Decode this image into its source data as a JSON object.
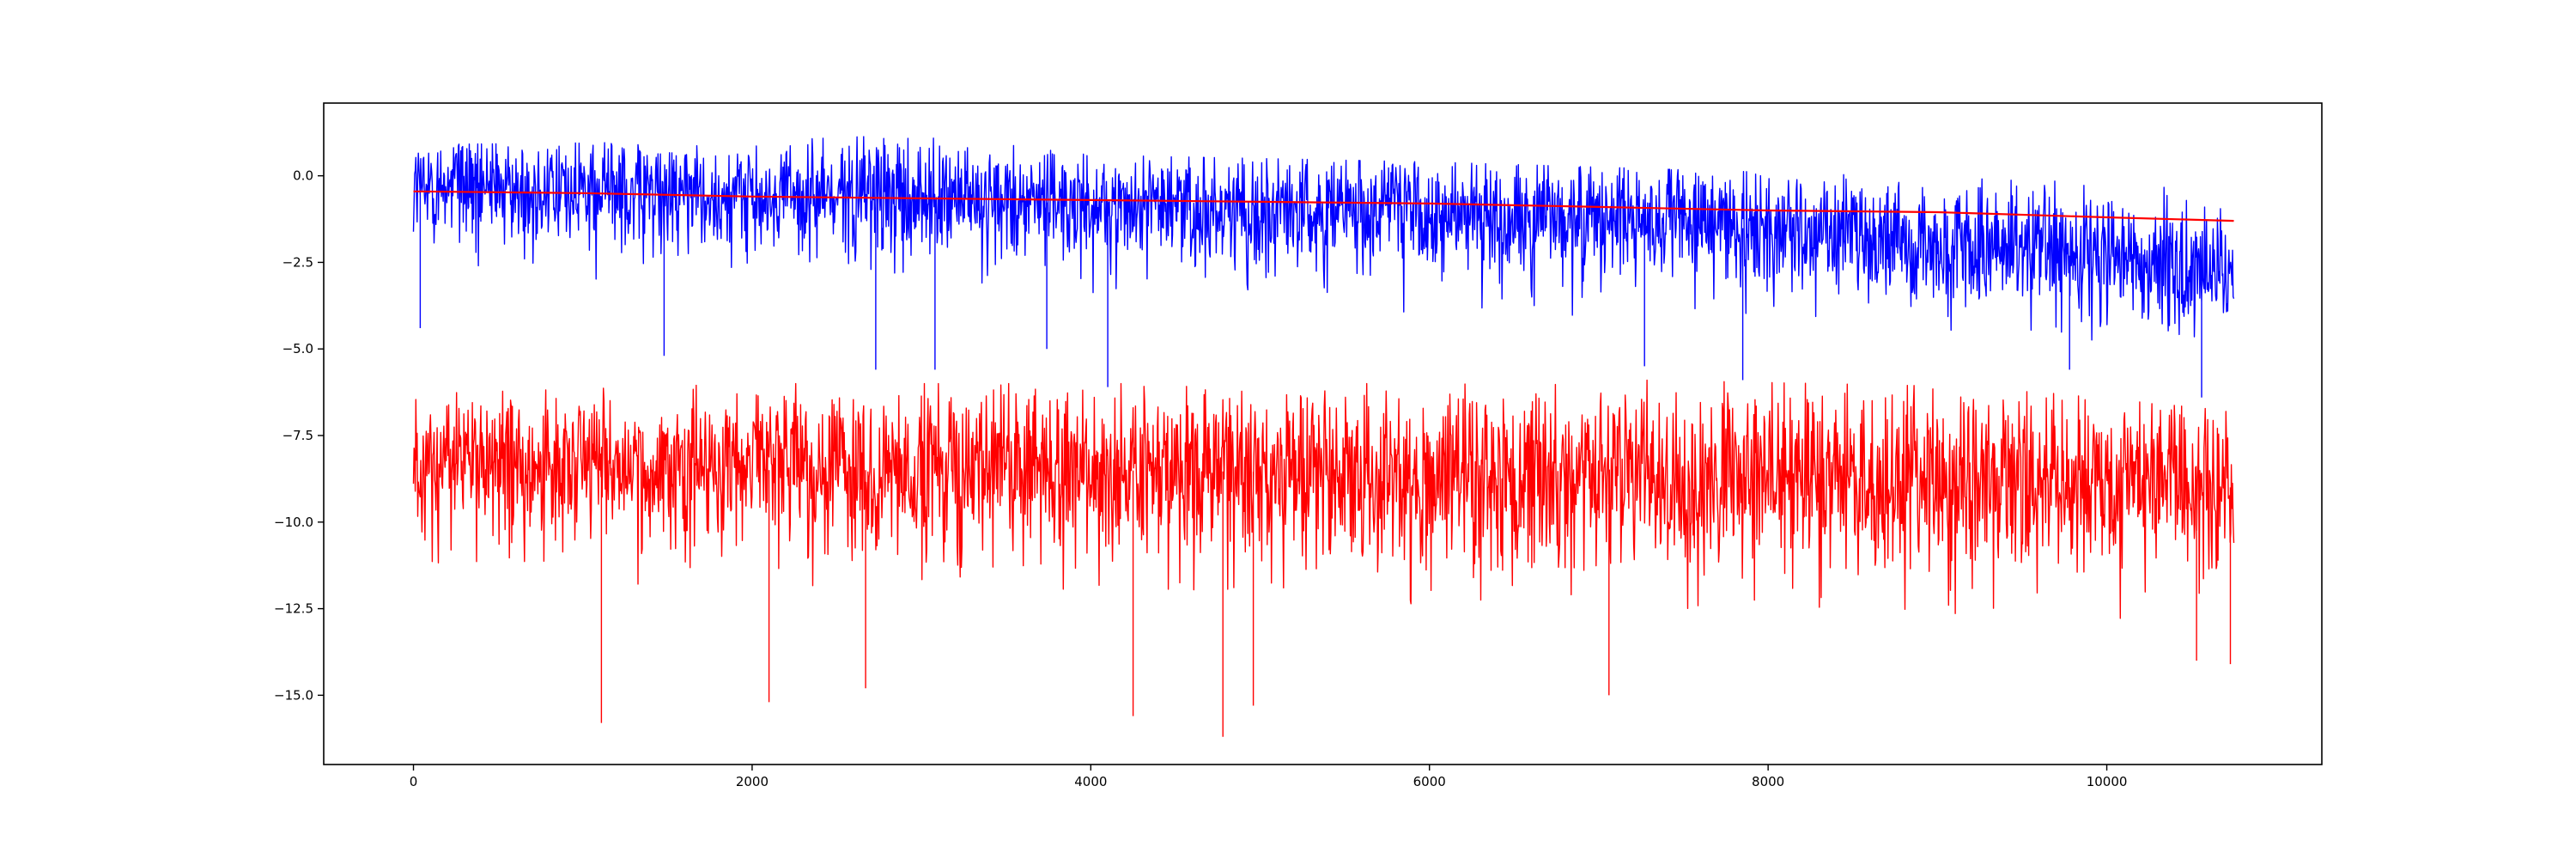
{
  "chart_data": {
    "type": "line",
    "title": "",
    "xlabel": "",
    "ylabel": "",
    "grid": false,
    "legend": "none",
    "xlim": [
      -530,
      11270
    ],
    "ylim": [
      -17.0,
      2.1
    ],
    "x_ticks": [
      0,
      2000,
      4000,
      6000,
      8000,
      10000
    ],
    "x_tick_labels": [
      "0",
      "2000",
      "4000",
      "6000",
      "8000",
      "10000"
    ],
    "y_ticks": [
      0.0,
      -2.5,
      -5.0,
      -7.5,
      -10.0,
      -12.5,
      -15.0
    ],
    "y_tick_labels": [
      "0.0",
      "−2.5",
      "−5.0",
      "−7.5",
      "−10.0",
      "−12.5",
      "−15.0"
    ],
    "series": [
      {
        "color": "#0000ff",
        "trend": [
          [
            0,
            -0.3
          ],
          [
            2000,
            -0.55
          ],
          [
            4000,
            -0.8
          ],
          [
            6000,
            -1.05
          ],
          [
            8000,
            -1.55
          ],
          [
            10000,
            -2.4
          ],
          [
            10750,
            -2.8
          ]
        ],
        "upper_envelope": [
          [
            0,
            0.9
          ],
          [
            2000,
            1.0
          ],
          [
            3000,
            1.2
          ],
          [
            4000,
            0.6
          ],
          [
            6000,
            0.4
          ],
          [
            8000,
            0.1
          ],
          [
            10000,
            -0.2
          ],
          [
            10750,
            -0.4
          ]
        ],
        "lower_envelope": [
          [
            0,
            -3.0
          ],
          [
            2000,
            -3.0
          ],
          [
            4000,
            -3.5
          ],
          [
            6000,
            -4.0
          ],
          [
            8000,
            -4.2
          ],
          [
            10000,
            -4.8
          ],
          [
            10750,
            -4.8
          ]
        ],
        "spikes": [
          [
            40,
            -4.4
          ],
          [
            1480,
            -5.2
          ],
          [
            2730,
            -5.6
          ],
          [
            3080,
            -5.6
          ],
          [
            3740,
            -5.0
          ],
          [
            4100,
            -6.1
          ],
          [
            7270,
            -5.5
          ],
          [
            7850,
            -5.9
          ],
          [
            9780,
            -5.6
          ],
          [
            10560,
            -6.4
          ]
        ],
        "count": 10750
      },
      {
        "color": "#ff0000",
        "trend": [
          [
            0,
            -8.2
          ],
          [
            1000,
            -8.3
          ],
          [
            2000,
            -8.5
          ],
          [
            4000,
            -8.5
          ],
          [
            6000,
            -8.6
          ],
          [
            8000,
            -8.8
          ],
          [
            10000,
            -8.9
          ],
          [
            10750,
            -9.0
          ]
        ],
        "upper_envelope": [
          [
            0,
            -6.3
          ],
          [
            2000,
            -6.0
          ],
          [
            4000,
            -6.0
          ],
          [
            6000,
            -6.0
          ],
          [
            7300,
            -5.9
          ],
          [
            9300,
            -6.1
          ],
          [
            10750,
            -6.8
          ]
        ],
        "lower_envelope": [
          [
            0,
            -11.5
          ],
          [
            2000,
            -12.0
          ],
          [
            4000,
            -12.0
          ],
          [
            6000,
            -12.5
          ],
          [
            8000,
            -12.5
          ],
          [
            10000,
            -12.8
          ],
          [
            10750,
            -13.0
          ]
        ],
        "spikes": [
          [
            1110,
            -15.8
          ],
          [
            2100,
            -15.2
          ],
          [
            2670,
            -14.8
          ],
          [
            4250,
            -15.6
          ],
          [
            4780,
            -16.2
          ],
          [
            4960,
            -15.3
          ],
          [
            7060,
            -15.0
          ],
          [
            10530,
            -14.0
          ],
          [
            10730,
            -14.1
          ]
        ],
        "count": 10750
      },
      {
        "color": "#ff0000",
        "role": "running-mean",
        "points": [
          [
            0,
            -0.45
          ],
          [
            1000,
            -0.5
          ],
          [
            2000,
            -0.6
          ],
          [
            3000,
            -0.65
          ],
          [
            4000,
            -0.7
          ],
          [
            5000,
            -0.75
          ],
          [
            6000,
            -0.8
          ],
          [
            7000,
            -0.9
          ],
          [
            8000,
            -1.0
          ],
          [
            9000,
            -1.05
          ],
          [
            10000,
            -1.2
          ],
          [
            10750,
            -1.3
          ]
        ]
      }
    ]
  }
}
